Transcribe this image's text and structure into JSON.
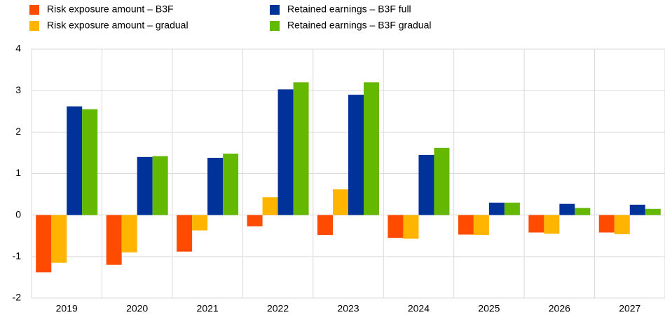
{
  "chart_data": {
    "type": "bar",
    "categories": [
      "2019",
      "2020",
      "2021",
      "2022",
      "2023",
      "2024",
      "2025",
      "2026",
      "2027"
    ],
    "series": [
      {
        "name": "Risk exposure amount – B3F",
        "color": "#ff4b00",
        "values": [
          -1.38,
          -1.2,
          -0.88,
          -0.27,
          -0.48,
          -0.55,
          -0.47,
          -0.42,
          -0.42
        ]
      },
      {
        "name": "Risk exposure amount – gradual",
        "color": "#ffb400",
        "values": [
          -1.15,
          -0.9,
          -0.37,
          0.43,
          0.62,
          -0.57,
          -0.48,
          -0.45,
          -0.46
        ]
      },
      {
        "name": "Retained earnings – B3F full",
        "color": "#003299",
        "values": [
          2.62,
          1.4,
          1.38,
          3.03,
          2.9,
          1.45,
          0.3,
          0.27,
          0.25
        ]
      },
      {
        "name": "Retained earnings – B3F gradual",
        "color": "#65b800",
        "values": [
          2.55,
          1.42,
          1.48,
          3.2,
          3.2,
          1.62,
          0.3,
          0.17,
          0.15
        ]
      }
    ],
    "ylim": [
      -2,
      4
    ],
    "yticks": [
      -2,
      -1,
      0,
      1,
      2,
      3,
      4
    ],
    "grid": true
  }
}
